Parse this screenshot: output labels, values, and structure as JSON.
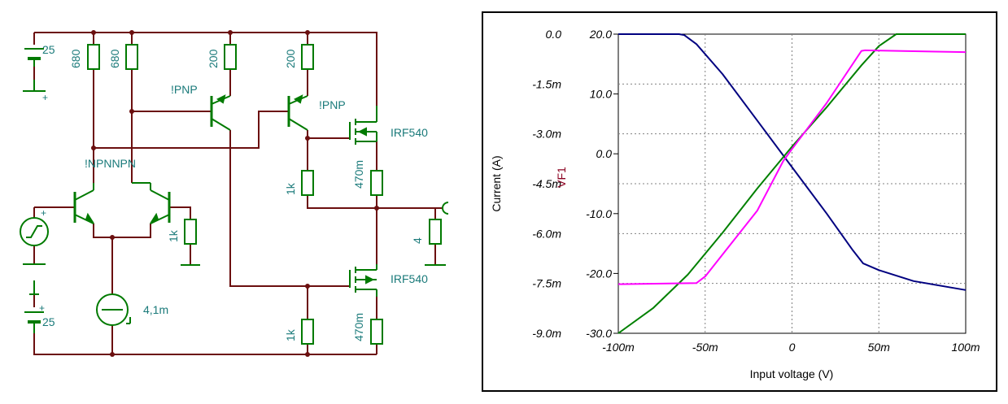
{
  "schematic": {
    "labels": {
      "v_top": "25",
      "v_bottom": "25",
      "r680_a": "680",
      "r680_b": "680",
      "r200_a": "200",
      "r200_b": "200",
      "pnp_a": "!PNP",
      "pnp_b": "!PNP",
      "npn_pair": "!NPNNPN",
      "mos_top": "IRF540",
      "mos_bot": "IRF540",
      "r1k_mid": "1k",
      "r470_top": "470m",
      "r1k_left": "1k",
      "r_load": "4",
      "current_src": "4,1m",
      "r1k_bot": "1k",
      "r470_bot": "470m",
      "plus_top": "+",
      "plus_bottom": "+",
      "plus_gen": "+"
    },
    "colors": {
      "wire": "#6b0f0f",
      "component": "#007a00",
      "label": "#1a7a7a"
    },
    "icons": [
      "battery-icon",
      "resistor-icon",
      "pnp-transistor-icon",
      "npn-transistor-icon",
      "mosfet-icon",
      "current-source-icon",
      "signal-generator-icon",
      "ground-icon",
      "output-terminal-icon"
    ]
  },
  "chart_data": {
    "type": "line",
    "xlabel": "Input voltage (V)",
    "ylabel_left": "Current (A)",
    "ylabel_right": "VF1",
    "xlim": [
      -0.1,
      0.1
    ],
    "ylim_left": [
      -0.009,
      0.0
    ],
    "ylim_right": [
      -30,
      20
    ],
    "x_ticks": [
      "-100m",
      "-50m",
      "0",
      "50m",
      "100m"
    ],
    "left_ticks": [
      "0.0",
      "-1.5m",
      "-3.0m",
      "-4.5m",
      "-6.0m",
      "-7.5m",
      "-9.0m"
    ],
    "right_ticks": [
      "20.0",
      "10.0",
      "0.0",
      "-10.0",
      "-20.0",
      "-30.0"
    ],
    "grid": true,
    "series": [
      {
        "axis": "left",
        "color": "#000080",
        "x": [
          -0.1,
          -0.065,
          -0.062,
          -0.055,
          -0.04,
          -0.02,
          0.0,
          0.02,
          0.035,
          0.041,
          0.05,
          0.07,
          0.1
        ],
        "y": [
          0.0,
          0.0,
          -3e-05,
          -0.0003,
          -0.0012,
          -0.0026,
          -0.004,
          -0.0054,
          -0.0065,
          -0.0069,
          -0.0071,
          -0.00743,
          -0.0077
        ]
      },
      {
        "axis": "right",
        "color": "#008000",
        "x": [
          -0.1,
          -0.08,
          -0.06,
          -0.04,
          -0.02,
          0.0,
          0.02,
          0.04,
          0.05,
          0.06,
          0.1
        ],
        "y": [
          -30.0,
          -25.8,
          -20.2,
          -13.2,
          -5.8,
          1.2,
          7.8,
          14.8,
          18.0,
          20.0,
          20.0
        ]
      },
      {
        "axis": "right",
        "color": "#ff00ff",
        "x": [
          -0.1,
          -0.055,
          -0.05,
          -0.02,
          -0.005,
          0.0,
          0.02,
          0.04,
          0.042,
          0.1
        ],
        "y": [
          -21.8,
          -21.6,
          -20.5,
          -9.5,
          -1.2,
          0.8,
          8.5,
          17.2,
          17.3,
          17.0
        ]
      }
    ]
  }
}
